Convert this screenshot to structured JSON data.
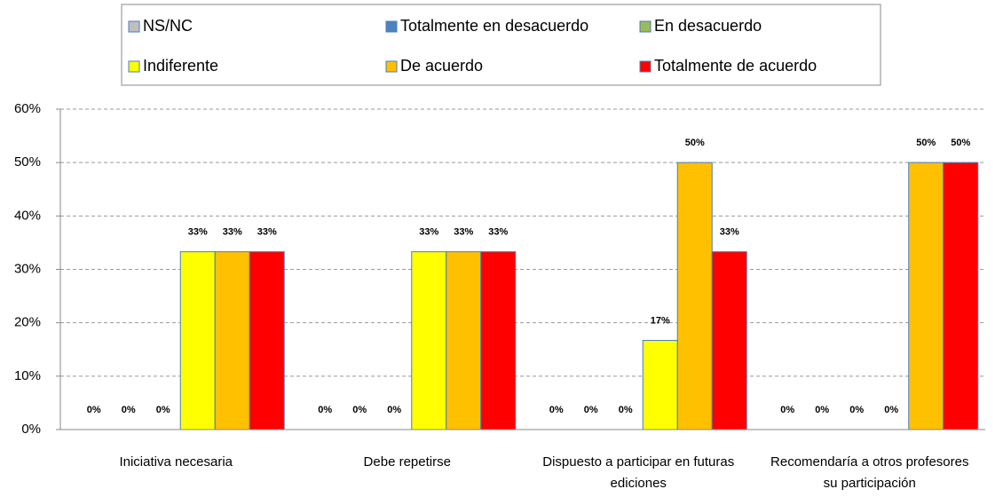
{
  "chart_data": {
    "type": "bar",
    "categories": [
      "Iniciativa necesaria",
      "Debe repetirse",
      "Dispuesto a participar en futuras ediciones",
      "Recomendaría a otros profesores su participación"
    ],
    "series": [
      {
        "name": "NS/NC",
        "color": "#bfbfbf",
        "values": [
          0,
          0,
          0,
          0
        ],
        "value_labels": [
          "0%",
          "0%",
          "0%",
          "0%"
        ]
      },
      {
        "name": "Totalmente en desacuerdo",
        "color": "#4f81bd",
        "values": [
          0,
          0,
          0,
          0
        ],
        "value_labels": [
          "0%",
          "0%",
          "0%",
          "0%"
        ]
      },
      {
        "name": "En desacuerdo",
        "color": "#9bbb59",
        "values": [
          0,
          0,
          0,
          0
        ],
        "value_labels": [
          "0%",
          "0%",
          "0%",
          "0%"
        ]
      },
      {
        "name": "Indiferente",
        "color": "#ffff00",
        "values": [
          33.3,
          33.3,
          16.7,
          0
        ],
        "value_labels": [
          "33%",
          "33%",
          "17%",
          "0%"
        ]
      },
      {
        "name": "De acuerdo",
        "color": "#ffc000",
        "values": [
          33.3,
          33.3,
          50,
          50
        ],
        "value_labels": [
          "33%",
          "33%",
          "50%",
          "50%"
        ]
      },
      {
        "name": "Totalmente de acuerdo",
        "color": "#ff0000",
        "values": [
          33.3,
          33.3,
          33.3,
          50
        ],
        "value_labels": [
          "33%",
          "33%",
          "33%",
          "50%"
        ]
      }
    ],
    "ylim": [
      0,
      60
    ],
    "yticks": [
      {
        "value": 0,
        "label": "0%"
      },
      {
        "value": 10,
        "label": "10%"
      },
      {
        "value": 20,
        "label": "20%"
      },
      {
        "value": 30,
        "label": "30%"
      },
      {
        "value": 40,
        "label": "40%"
      },
      {
        "value": 50,
        "label": "50%"
      },
      {
        "value": 60,
        "label": "60%"
      }
    ],
    "grid": true,
    "legend": "top"
  }
}
